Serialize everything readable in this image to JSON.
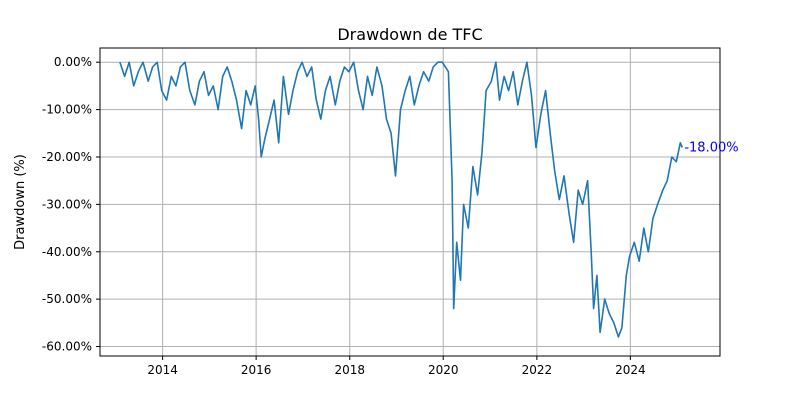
{
  "chart_data": {
    "type": "line",
    "title": "Drawdown de TFC",
    "xlabel": "",
    "ylabel": "Drawdown (%)",
    "xlim": [
      "2012-08-30",
      "2025-12-01"
    ],
    "ylim": [
      -62,
      3
    ],
    "x_ticks": [
      "2014",
      "2016",
      "2018",
      "2020",
      "2022",
      "2024"
    ],
    "y_ticks": [
      0,
      -10,
      -20,
      -30,
      -40,
      -50,
      -60
    ],
    "y_tick_labels": [
      "0.00%",
      "-10.00%",
      "-20.00%",
      "-30.00%",
      "-40.00%",
      "-50.00%",
      "-60.00%"
    ],
    "grid": true,
    "series": [
      {
        "color": "#1f77b4",
        "x": [
          "2013-02-01",
          "2013-03-10",
          "2013-04-15",
          "2013-05-20",
          "2013-06-25",
          "2013-08-01",
          "2013-09-10",
          "2013-10-15",
          "2013-11-20",
          "2013-12-25",
          "2014-02-01",
          "2014-03-10",
          "2014-04-15",
          "2014-05-20",
          "2014-06-25",
          "2014-08-01",
          "2014-09-10",
          "2014-10-15",
          "2014-11-20",
          "2014-12-25",
          "2015-02-01",
          "2015-03-10",
          "2015-04-15",
          "2015-05-20",
          "2015-06-25",
          "2015-08-01",
          "2015-09-10",
          "2015-10-15",
          "2015-11-20",
          "2015-12-25",
          "2016-01-20",
          "2016-02-10",
          "2016-03-10",
          "2016-04-15",
          "2016-05-20",
          "2016-06-25",
          "2016-08-01",
          "2016-09-10",
          "2016-10-15",
          "2016-11-20",
          "2016-12-25",
          "2017-02-01",
          "2017-03-10",
          "2017-04-15",
          "2017-05-20",
          "2017-06-25",
          "2017-08-01",
          "2017-09-10",
          "2017-10-15",
          "2017-11-20",
          "2017-12-25",
          "2018-02-01",
          "2018-03-10",
          "2018-04-15",
          "2018-05-20",
          "2018-06-25",
          "2018-08-01",
          "2018-09-10",
          "2018-10-15",
          "2018-11-20",
          "2018-12-24",
          "2019-02-01",
          "2019-03-10",
          "2019-04-15",
          "2019-05-20",
          "2019-06-25",
          "2019-08-01",
          "2019-09-10",
          "2019-10-15",
          "2019-11-20",
          "2019-12-25",
          "2020-02-10",
          "2020-03-10",
          "2020-03-23",
          "2020-04-15",
          "2020-05-15",
          "2020-06-08",
          "2020-07-15",
          "2020-08-20",
          "2020-09-25",
          "2020-10-30",
          "2020-12-01",
          "2021-01-10",
          "2021-02-15",
          "2021-03-15",
          "2021-04-20",
          "2021-05-25",
          "2021-06-30",
          "2021-08-05",
          "2021-09-10",
          "2021-10-15",
          "2021-11-20",
          "2021-12-25",
          "2022-02-01",
          "2022-03-10",
          "2022-04-15",
          "2022-05-20",
          "2022-06-25",
          "2022-08-01",
          "2022-09-10",
          "2022-10-15",
          "2022-11-20",
          "2022-12-25",
          "2023-02-01",
          "2023-03-01",
          "2023-03-20",
          "2023-04-15",
          "2023-05-10",
          "2023-06-15",
          "2023-07-20",
          "2023-08-25",
          "2023-09-30",
          "2023-10-27",
          "2023-11-30",
          "2023-12-25",
          "2024-02-01",
          "2024-03-10",
          "2024-04-15",
          "2024-05-20",
          "2024-06-25",
          "2024-08-01",
          "2024-09-10",
          "2024-10-15",
          "2024-11-20",
          "2024-12-25",
          "2025-01-25",
          "2025-02-10"
        ],
        "y": [
          0,
          -3,
          0,
          -5,
          -2,
          0,
          -4,
          -1,
          0,
          -6,
          -8,
          -3,
          -5,
          -1,
          0,
          -6,
          -9,
          -4,
          -2,
          -7,
          -5,
          -10,
          -3,
          -1,
          -4,
          -8,
          -14,
          -6,
          -9,
          -5,
          -12,
          -20,
          -16,
          -12,
          -8,
          -17,
          -3,
          -11,
          -6,
          -2,
          0,
          -3,
          -1,
          -8,
          -12,
          -6,
          -3,
          -9,
          -4,
          -1,
          -2,
          0,
          -6,
          -10,
          -3,
          -7,
          -1,
          -5,
          -12,
          -15,
          -24,
          -10,
          -6,
          -3,
          -9,
          -5,
          -2,
          -4,
          -1,
          0,
          0,
          -2,
          -25,
          -52,
          -38,
          -46,
          -30,
          -35,
          -22,
          -28,
          -19,
          -6,
          -4,
          0,
          -8,
          -3,
          -6,
          -2,
          -9,
          -4,
          0,
          -7,
          -18,
          -11,
          -6,
          -15,
          -23,
          -29,
          -24,
          -32,
          -38,
          -27,
          -30,
          -25,
          -40,
          -52,
          -45,
          -57,
          -50,
          -53,
          -55,
          -58,
          -56,
          -45,
          -41,
          -38,
          -42,
          -35,
          -40,
          -33,
          -30,
          -27,
          -25,
          -20,
          -21,
          -17,
          -18
        ]
      }
    ],
    "annotations": [
      {
        "text": "-18.00%",
        "x": "2025-02-10",
        "y": -18,
        "color": "#0000ff"
      }
    ]
  }
}
